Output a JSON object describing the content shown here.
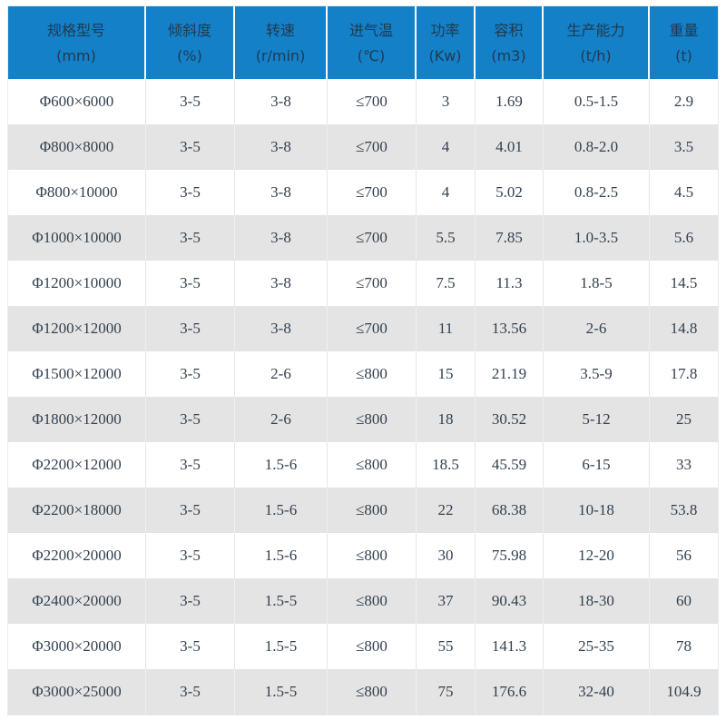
{
  "chart_data": {
    "type": "table",
    "columns": [
      {
        "label": "规格型号",
        "unit": "(mm)"
      },
      {
        "label": "倾斜度",
        "unit": "(%)"
      },
      {
        "label": "转速",
        "unit": "(r/min)"
      },
      {
        "label": "进气温",
        "unit": "(℃)"
      },
      {
        "label": "功率",
        "unit": "(Kw)"
      },
      {
        "label": "容积",
        "unit": "(m3)"
      },
      {
        "label": "生产能力",
        "unit": "(t/h)"
      },
      {
        "label": "重量",
        "unit": "(t)"
      }
    ],
    "rows": [
      {
        "cells": [
          "Φ600×6000",
          "3-5",
          "3-8",
          "≤700",
          "3",
          "1.69",
          "0.5-1.5",
          "2.9"
        ]
      },
      {
        "cells": [
          "Φ800×8000",
          "3-5",
          "3-8",
          "≤700",
          "4",
          "4.01",
          "0.8-2.0",
          "3.5"
        ]
      },
      {
        "cells": [
          "Φ800×10000",
          "3-5",
          "3-8",
          "≤700",
          "4",
          "5.02",
          "0.8-2.5",
          "4.5"
        ]
      },
      {
        "cells": [
          "Φ1000×10000",
          "3-5",
          "3-8",
          "≤700",
          "5.5",
          "7.85",
          "1.0-3.5",
          "5.6"
        ]
      },
      {
        "cells": [
          "Φ1200×10000",
          "3-5",
          "3-8",
          "≤700",
          "7.5",
          "11.3",
          "1.8-5",
          "14.5"
        ]
      },
      {
        "cells": [
          "Φ1200×12000",
          "3-5",
          "3-8",
          "≤700",
          "11",
          "13.56",
          "2-6",
          "14.8"
        ]
      },
      {
        "cells": [
          "Φ1500×12000",
          "3-5",
          "2-6",
          "≤800",
          "15",
          "21.19",
          "3.5-9",
          "17.8"
        ]
      },
      {
        "cells": [
          "Φ1800×12000",
          "3-5",
          "2-6",
          "≤800",
          "18",
          "30.52",
          "5-12",
          "25"
        ]
      },
      {
        "cells": [
          "Φ2200×12000",
          "3-5",
          "1.5-6",
          "≤800",
          "18.5",
          "45.59",
          "6-15",
          "33"
        ]
      },
      {
        "cells": [
          "Φ2200×18000",
          "3-5",
          "1.5-6",
          "≤800",
          "22",
          "68.38",
          "10-18",
          "53.8"
        ]
      },
      {
        "cells": [
          "Φ2200×20000",
          "3-5",
          "1.5-6",
          "≤800",
          "30",
          "75.98",
          "12-20",
          "56"
        ]
      },
      {
        "cells": [
          "Φ2400×20000",
          "3-5",
          "1.5-5",
          "≤800",
          "37",
          "90.43",
          "18-30",
          "60"
        ]
      },
      {
        "cells": [
          "Φ3000×20000",
          "3-5",
          "1.5-5",
          "≤800",
          "55",
          "141.3",
          "25-35",
          "78"
        ]
      },
      {
        "cells": [
          "Φ3000×25000",
          "3-5",
          "1.5-5",
          "≤800",
          "75",
          "176.6",
          "32-40",
          "104.9"
        ]
      }
    ]
  },
  "colors": {
    "header_background": "#1480c8",
    "header_text": "#203a50",
    "row_white": "#ffffff",
    "row_gray": "#e4e4e4",
    "cell_text": "#33404f",
    "grid_line": "#e6e6e6",
    "outer_border": "#e4ebf1"
  }
}
